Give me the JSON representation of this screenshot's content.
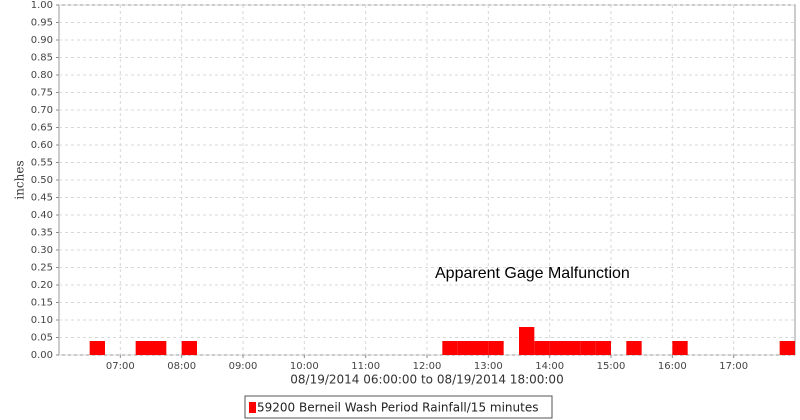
{
  "chart_data": {
    "type": "bar",
    "ylabel": "inches",
    "xlabel": "08/19/2014 06:00:00 to 08/19/2014 18:00:00",
    "annotation": "Apparent Gage Malfunction",
    "xlim": [
      "06:00",
      "18:00"
    ],
    "xticks": [
      "07:00",
      "08:00",
      "09:00",
      "10:00",
      "11:00",
      "12:00",
      "13:00",
      "14:00",
      "15:00",
      "16:00",
      "17:00"
    ],
    "ylim": [
      0,
      1
    ],
    "yticks": [
      {
        "value": 0,
        "label": "0.00"
      },
      {
        "value": 0.05,
        "label": "0.05"
      },
      {
        "value": 0.1,
        "label": "0.10"
      },
      {
        "value": 0.15,
        "label": "0.15"
      },
      {
        "value": 0.2,
        "label": "0.20"
      },
      {
        "value": 0.25,
        "label": "0.25"
      },
      {
        "value": 0.3,
        "label": "0.30"
      },
      {
        "value": 0.35,
        "label": "0.35"
      },
      {
        "value": 0.4,
        "label": "0.40"
      },
      {
        "value": 0.45,
        "label": "0.45"
      },
      {
        "value": 0.5,
        "label": "0.50"
      },
      {
        "value": 0.55,
        "label": "0.55"
      },
      {
        "value": 0.6,
        "label": "0.60"
      },
      {
        "value": 0.65,
        "label": "0.65"
      },
      {
        "value": 0.7,
        "label": "0.70"
      },
      {
        "value": 0.75,
        "label": "0.75"
      },
      {
        "value": 0.8,
        "label": "0.80"
      },
      {
        "value": 0.85,
        "label": "0.85"
      },
      {
        "value": 0.9,
        "label": "0.90"
      },
      {
        "value": 0.95,
        "label": "0.95"
      },
      {
        "value": 1,
        "label": "1.00"
      }
    ],
    "grid": true,
    "series": [
      {
        "name": "59200 Berneil Wash Period Rainfall/15 minutes",
        "color": "#ff0000",
        "x": [
          "06:30",
          "07:15",
          "07:30",
          "08:00",
          "12:15",
          "12:30",
          "12:45",
          "13:00",
          "13:30",
          "13:45",
          "14:00",
          "14:15",
          "14:30",
          "14:45",
          "15:15",
          "16:00",
          "17:45"
        ],
        "values": [
          0.04,
          0.04,
          0.04,
          0.04,
          0.04,
          0.04,
          0.04,
          0.04,
          0.08,
          0.04,
          0.04,
          0.04,
          0.04,
          0.04,
          0.04,
          0.04,
          0.04
        ]
      }
    ]
  }
}
